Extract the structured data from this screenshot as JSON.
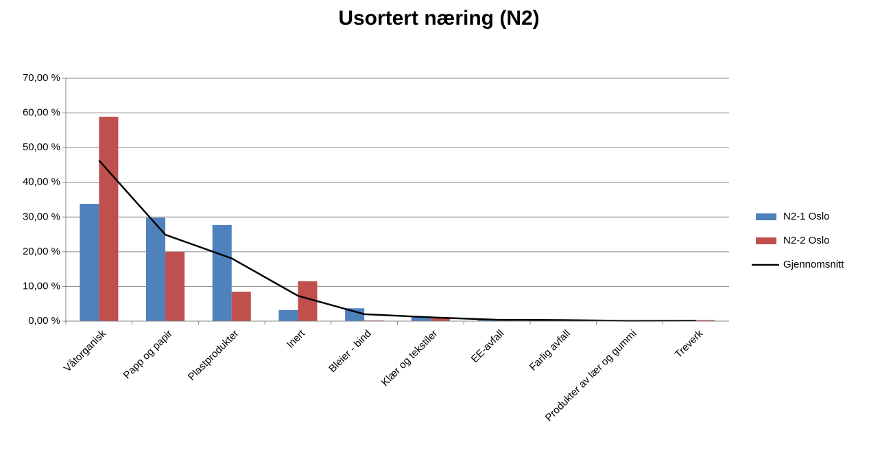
{
  "chart_data": {
    "type": "bar",
    "title": "Usortert næring (N2)",
    "categories": [
      "Våtorganisk",
      "Papp og papir",
      "Plastprodukter",
      "Inert",
      "Bleier - bind",
      "Klær og tekstiler",
      "EE-avfall",
      "Farlig avfall",
      "Produkter av lær og gummi",
      "Treverk"
    ],
    "series": [
      {
        "name": "N2-1 Oslo",
        "type": "bar",
        "color": "#4f81bd",
        "values": [
          33.8,
          29.8,
          27.7,
          3.2,
          3.7,
          1.4,
          0.6,
          0.3,
          0.1,
          0
        ]
      },
      {
        "name": "N2-2 Oslo",
        "type": "bar",
        "color": "#c0504d",
        "values": [
          58.9,
          20.0,
          8.5,
          11.5,
          0.2,
          0.8,
          0.2,
          0.3,
          0.1,
          0.3
        ]
      },
      {
        "name": "Gjennomsnitt",
        "type": "line",
        "color": "#000000",
        "values": [
          46.3,
          24.9,
          18.1,
          7.3,
          2.0,
          1.1,
          0.4,
          0.3,
          0.1,
          0.15
        ]
      }
    ],
    "ylim": [
      0,
      70
    ],
    "yticks": [
      {
        "value": 0,
        "label": "0,00 %"
      },
      {
        "value": 10,
        "label": "10,00 %"
      },
      {
        "value": 20,
        "label": "20,00 %"
      },
      {
        "value": 30,
        "label": "30,00 %"
      },
      {
        "value": 40,
        "label": "40,00 %"
      },
      {
        "value": 50,
        "label": "50,00 %"
      },
      {
        "value": 60,
        "label": "60,00 %"
      },
      {
        "value": 70,
        "label": "70,00 %"
      }
    ],
    "grid": true,
    "legend": "right"
  }
}
